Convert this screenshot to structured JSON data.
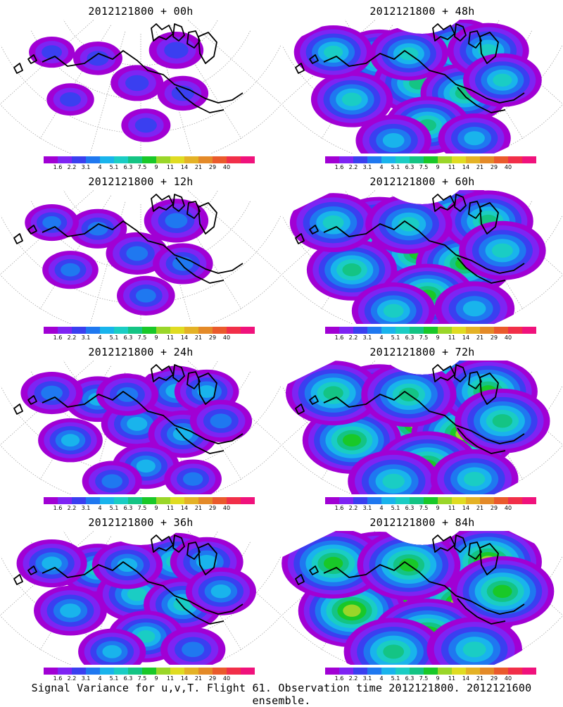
{
  "panels": [
    {
      "title": "2012121800 + 00h",
      "level": 0
    },
    {
      "title": "2012121800 + 48h",
      "level": 4
    },
    {
      "title": "2012121800 + 12h",
      "level": 1
    },
    {
      "title": "2012121800 + 60h",
      "level": 5
    },
    {
      "title": "2012121800 + 24h",
      "level": 2
    },
    {
      "title": "2012121800 + 72h",
      "level": 6
    },
    {
      "title": "2012121800 + 36h",
      "level": 3
    },
    {
      "title": "2012121800 + 84h",
      "level": 7
    }
  ],
  "scale": {
    "colors": [
      "#a100d4",
      "#7e24f3",
      "#3a3ff0",
      "#1f78f0",
      "#19b4ec",
      "#1acdc4",
      "#14c484",
      "#19c828",
      "#9ad629",
      "#e0dc22",
      "#e4b226",
      "#e48a28",
      "#ea5a2c",
      "#f12f49",
      "#f0127c"
    ],
    "labels": [
      "1.6",
      "2.2",
      "3.1",
      "4",
      "5.1",
      "6.3",
      "7.5",
      "9",
      "11",
      "14",
      "21",
      "29",
      "40"
    ]
  },
  "footer": "Signal Variance for u,v,T. Flight 61. Observation time 2012121800. 2012121600 ensemble."
}
